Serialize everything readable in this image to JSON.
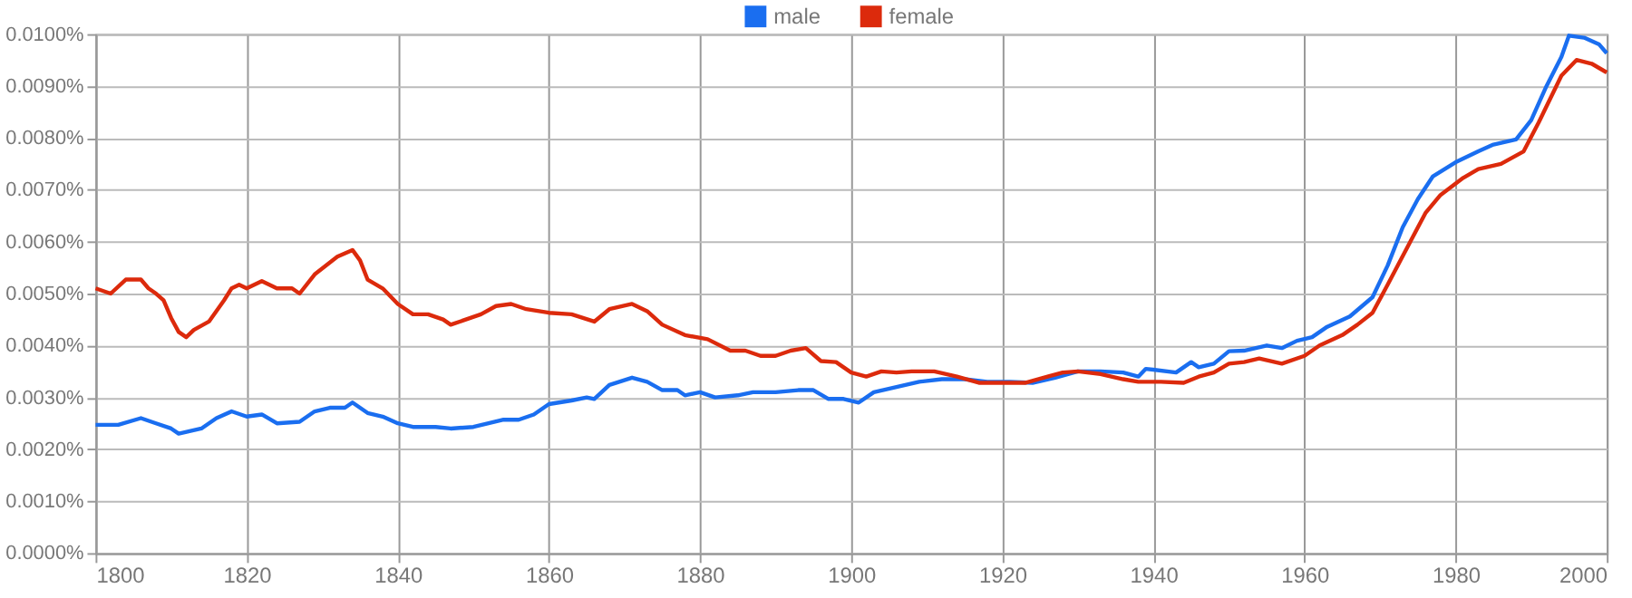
{
  "chart_data": {
    "type": "line",
    "legend": "top",
    "grid": true,
    "marker": "none",
    "line_style": "solid",
    "xlim": [
      1800,
      2000
    ],
    "xticks": [
      1800,
      1820,
      1840,
      1860,
      1880,
      1900,
      1920,
      1940,
      1960,
      1980,
      2000
    ],
    "ylim": [
      0,
      0.01
    ],
    "yticks": [
      {
        "value": 0,
        "label": "0.0000%"
      },
      {
        "value": 0.001,
        "label": "0.0010%"
      },
      {
        "value": 0.002,
        "label": "0.0020%"
      },
      {
        "value": 0.003,
        "label": "0.0030%"
      },
      {
        "value": 0.004,
        "label": "0.0040%"
      },
      {
        "value": 0.005,
        "label": "0.0050%"
      },
      {
        "value": 0.006,
        "label": "0.0060%"
      },
      {
        "value": 0.007,
        "label": "0.0070%"
      },
      {
        "value": 0.008,
        "label": "0.0080%"
      },
      {
        "value": 0.009,
        "label": "0.0090%"
      },
      {
        "value": 0.01,
        "label": "0.0100%"
      }
    ],
    "series": [
      {
        "name": "male",
        "color": "#1a6ef0",
        "x": [
          1800,
          1803,
          1806,
          1808,
          1810,
          1811,
          1814,
          1816,
          1818,
          1820,
          1822,
          1824,
          1827,
          1829,
          1831,
          1833,
          1834,
          1836,
          1838,
          1840,
          1842,
          1845,
          1847,
          1850,
          1854,
          1856,
          1858,
          1860,
          1863,
          1865,
          1866,
          1868,
          1871,
          1873,
          1875,
          1877,
          1878,
          1880,
          1882,
          1885,
          1887,
          1890,
          1893,
          1895,
          1897,
          1899,
          1901,
          1903,
          1906,
          1909,
          1912,
          1915,
          1918,
          1921,
          1924,
          1927,
          1930,
          1933,
          1936,
          1938,
          1939,
          1943,
          1945,
          1946,
          1948,
          1950,
          1952,
          1955,
          1957,
          1959,
          1961,
          1963,
          1966,
          1969,
          1971,
          1973,
          1975,
          1977,
          1980,
          1983,
          1985,
          1988,
          1990,
          1992,
          1994,
          1995,
          1997,
          1999,
          2000
        ],
        "values": [
          0.00247,
          0.00247,
          0.0026,
          0.0025,
          0.0024,
          0.0023,
          0.0024,
          0.0026,
          0.00273,
          0.00263,
          0.00267,
          0.0025,
          0.00253,
          0.00273,
          0.0028,
          0.0028,
          0.0029,
          0.0027,
          0.00263,
          0.0025,
          0.00243,
          0.00243,
          0.0024,
          0.00243,
          0.00257,
          0.00257,
          0.00267,
          0.00287,
          0.00294,
          0.003,
          0.00297,
          0.00324,
          0.00338,
          0.0033,
          0.00314,
          0.00314,
          0.00304,
          0.0031,
          0.003,
          0.00304,
          0.0031,
          0.0031,
          0.00314,
          0.00314,
          0.00297,
          0.00297,
          0.0029,
          0.0031,
          0.0032,
          0.0033,
          0.00335,
          0.00335,
          0.0033,
          0.0033,
          0.00328,
          0.00338,
          0.0035,
          0.0035,
          0.00348,
          0.0034,
          0.00355,
          0.00348,
          0.00368,
          0.00358,
          0.00365,
          0.00389,
          0.0039,
          0.004,
          0.00395,
          0.00409,
          0.00416,
          0.00436,
          0.00456,
          0.00493,
          0.00554,
          0.00628,
          0.00682,
          0.00726,
          0.00753,
          0.00774,
          0.00787,
          0.00797,
          0.00834,
          0.00899,
          0.00956,
          0.00997,
          0.00993,
          0.0098,
          0.00963
        ]
      },
      {
        "name": "female",
        "color": "#dc2a0c",
        "x": [
          1800,
          1802,
          1804,
          1806,
          1807,
          1808,
          1809,
          1810,
          1811,
          1812,
          1813,
          1815,
          1817,
          1818,
          1819,
          1820,
          1822,
          1824,
          1826,
          1827,
          1829,
          1832,
          1834,
          1835,
          1836,
          1838,
          1840,
          1842,
          1844,
          1846,
          1847,
          1849,
          1851,
          1853,
          1855,
          1857,
          1860,
          1863,
          1866,
          1868,
          1871,
          1873,
          1875,
          1878,
          1881,
          1884,
          1886,
          1888,
          1890,
          1892,
          1894,
          1896,
          1898,
          1900,
          1902,
          1904,
          1906,
          1908,
          1911,
          1914,
          1917,
          1920,
          1923,
          1926,
          1928,
          1930,
          1933,
          1936,
          1938,
          1941,
          1944,
          1946,
          1948,
          1950,
          1952,
          1954,
          1957,
          1960,
          1962,
          1965,
          1967,
          1969,
          1971,
          1974,
          1976,
          1978,
          1981,
          1983,
          1986,
          1989,
          1991,
          1994,
          1996,
          1998,
          2000
        ],
        "values": [
          0.0051,
          0.005,
          0.00527,
          0.00527,
          0.0051,
          0.005,
          0.00487,
          0.00453,
          0.00426,
          0.00416,
          0.0043,
          0.00446,
          0.00487,
          0.0051,
          0.00517,
          0.0051,
          0.00524,
          0.0051,
          0.0051,
          0.005,
          0.00537,
          0.00571,
          0.00584,
          0.00564,
          0.00527,
          0.0051,
          0.0048,
          0.0046,
          0.0046,
          0.0045,
          0.0044,
          0.0045,
          0.0046,
          0.00476,
          0.0048,
          0.0047,
          0.00463,
          0.0046,
          0.00446,
          0.0047,
          0.0048,
          0.00466,
          0.0044,
          0.0042,
          0.00412,
          0.0039,
          0.0039,
          0.0038,
          0.0038,
          0.0039,
          0.00395,
          0.0037,
          0.00368,
          0.00348,
          0.0034,
          0.0035,
          0.00348,
          0.0035,
          0.0035,
          0.0034,
          0.00328,
          0.00328,
          0.00328,
          0.0034,
          0.00348,
          0.0035,
          0.00345,
          0.00335,
          0.0033,
          0.0033,
          0.00328,
          0.0034,
          0.00348,
          0.00365,
          0.00368,
          0.00375,
          0.00365,
          0.0038,
          0.004,
          0.0042,
          0.0044,
          0.00463,
          0.00517,
          0.006,
          0.00655,
          0.0069,
          0.00723,
          0.0074,
          0.0075,
          0.00774,
          0.0083,
          0.0092,
          0.0095,
          0.00943,
          0.00926
        ]
      }
    ]
  }
}
